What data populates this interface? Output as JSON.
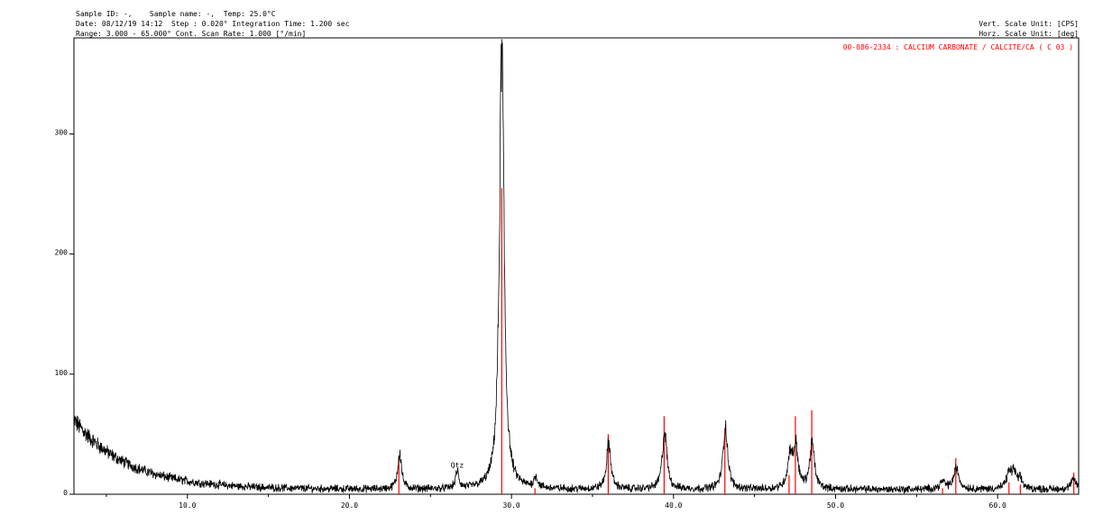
{
  "header": {
    "line1": "Sample ID: -,    Sample name: -,  Temp: 25.0°C",
    "line2": "Date: 08/12/19 14:12  Step : 0.020° Integration Time: 1.200 sec",
    "line3": "Range: 3.000 - 65.000° Cont. Scan Rate: 1.000 [°/min]",
    "vert_unit": "Vert. Scale Unit: [CPS]",
    "horz_unit": "Horz. Scale Unit: [deg]"
  },
  "chart_data": {
    "type": "line",
    "title": "",
    "xlabel": "",
    "ylabel": "",
    "xlim": [
      3,
      65
    ],
    "ylim": [
      0,
      380
    ],
    "x_ticks": [
      {
        "value": 10,
        "label": "10.0"
      },
      {
        "value": 20,
        "label": "20.0"
      },
      {
        "value": 30,
        "label": "30.0"
      },
      {
        "value": 40,
        "label": "40.0"
      },
      {
        "value": 50,
        "label": "50.0"
      },
      {
        "value": 60,
        "label": "60.0"
      }
    ],
    "y_ticks": [
      {
        "value": 0,
        "label": "0"
      },
      {
        "value": 100,
        "label": "100"
      },
      {
        "value": 200,
        "label": "200"
      },
      {
        "value": 300,
        "label": "300"
      }
    ],
    "grid": false,
    "series_color": "#000000",
    "peaks": [
      {
        "x": 23.1,
        "y": 30,
        "w": 0.14
      },
      {
        "x": 26.65,
        "y": 14,
        "w": 0.12
      },
      {
        "x": 29.4,
        "y": 370,
        "w": 0.17
      },
      {
        "x": 31.5,
        "y": 9,
        "w": 0.14
      },
      {
        "x": 36.0,
        "y": 38,
        "w": 0.16
      },
      {
        "x": 39.45,
        "y": 48,
        "w": 0.17
      },
      {
        "x": 43.2,
        "y": 52,
        "w": 0.17
      },
      {
        "x": 47.2,
        "y": 28,
        "w": 0.18
      },
      {
        "x": 47.55,
        "y": 33,
        "w": 0.16
      },
      {
        "x": 48.55,
        "y": 38,
        "w": 0.17
      },
      {
        "x": 56.6,
        "y": 6,
        "w": 0.2
      },
      {
        "x": 57.45,
        "y": 17,
        "w": 0.2
      },
      {
        "x": 60.7,
        "y": 12,
        "w": 0.18
      },
      {
        "x": 61.0,
        "y": 13,
        "w": 0.18
      },
      {
        "x": 61.4,
        "y": 7,
        "w": 0.18
      },
      {
        "x": 64.7,
        "y": 8,
        "w": 0.2
      }
    ],
    "background": {
      "base": 4,
      "amp": 58,
      "decay": 3.3
    },
    "reference": {
      "label": "00-086-2334 : CALCIUM CARBONATE / CALCITE/CA ( C 03 )",
      "color": "#ff0000",
      "lines": [
        {
          "x": 23.05,
          "y": 30
        },
        {
          "x": 29.4,
          "y": 255
        },
        {
          "x": 31.45,
          "y": 5
        },
        {
          "x": 35.97,
          "y": 50
        },
        {
          "x": 39.42,
          "y": 65
        },
        {
          "x": 43.17,
          "y": 55
        },
        {
          "x": 47.13,
          "y": 16
        },
        {
          "x": 47.52,
          "y": 65
        },
        {
          "x": 48.53,
          "y": 70
        },
        {
          "x": 56.6,
          "y": 5
        },
        {
          "x": 57.42,
          "y": 30
        },
        {
          "x": 60.7,
          "y": 10
        },
        {
          "x": 61.4,
          "y": 8
        },
        {
          "x": 64.7,
          "y": 18
        }
      ]
    },
    "annotations": [
      {
        "label": "Qtz",
        "x": 26.65,
        "y": 22
      }
    ]
  }
}
